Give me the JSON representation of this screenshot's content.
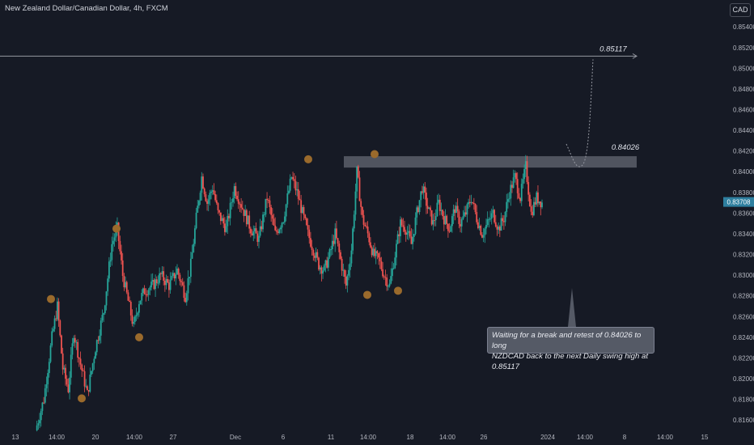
{
  "header": {
    "title": "New Zealand Dollar/Canadian Dollar, 4h, FXCM",
    "currency": "CAD"
  },
  "colors": {
    "background": "#161a25",
    "up": "#26a69a",
    "down": "#ef5350",
    "text": "#b2b5be",
    "swing": "#9a6a2c",
    "zone": "#5a5f6a",
    "price_tag": "#2e7f9f"
  },
  "chart_data": {
    "type": "candlestick",
    "title": "New Zealand Dollar/Canadian Dollar, 4h, FXCM",
    "ylim": [
      0.815,
      0.8555
    ],
    "y_ticks": [
      "0.85400",
      "0.85200",
      "0.85000",
      "0.84800",
      "0.84600",
      "0.84400",
      "0.84200",
      "0.84000",
      "0.83800",
      "0.83600",
      "0.83400",
      "0.83200",
      "0.83000",
      "0.82800",
      "0.82600",
      "0.82400",
      "0.82200",
      "0.82000",
      "0.81800",
      "0.81600"
    ],
    "x_ticks": [
      "13",
      "14:00",
      "20",
      "14:00",
      "27",
      "Dec",
      "6",
      "11",
      "14:00",
      "18",
      "14:00",
      "26",
      "2024",
      "14:00",
      "8",
      "14:00",
      "15"
    ],
    "current_price": "0.83708",
    "candles_close_path": [
      [
        0,
        0.815
      ],
      [
        6,
        0.818
      ],
      [
        12,
        0.824
      ],
      [
        16,
        0.827
      ],
      [
        20,
        0.821
      ],
      [
        24,
        0.819
      ],
      [
        28,
        0.8245
      ],
      [
        32,
        0.822
      ],
      [
        38,
        0.8185
      ],
      [
        44,
        0.823
      ],
      [
        50,
        0.8265
      ],
      [
        56,
        0.833
      ],
      [
        60,
        0.8345
      ],
      [
        64,
        0.83
      ],
      [
        68,
        0.8275
      ],
      [
        72,
        0.825
      ],
      [
        76,
        0.8275
      ],
      [
        80,
        0.8285
      ],
      [
        86,
        0.829
      ],
      [
        92,
        0.83
      ],
      [
        98,
        0.829
      ],
      [
        104,
        0.8305
      ],
      [
        110,
        0.828
      ],
      [
        114,
        0.831
      ],
      [
        118,
        0.8355
      ],
      [
        122,
        0.8395
      ],
      [
        126,
        0.837
      ],
      [
        130,
        0.8385
      ],
      [
        134,
        0.836
      ],
      [
        140,
        0.8345
      ],
      [
        146,
        0.8385
      ],
      [
        152,
        0.8365
      ],
      [
        158,
        0.8345
      ],
      [
        164,
        0.8335
      ],
      [
        170,
        0.8375
      ],
      [
        176,
        0.834
      ],
      [
        182,
        0.8355
      ],
      [
        188,
        0.8395
      ],
      [
        192,
        0.838
      ],
      [
        196,
        0.836
      ],
      [
        200,
        0.834
      ],
      [
        204,
        0.8325
      ],
      [
        208,
        0.831
      ],
      [
        212,
        0.8305
      ],
      [
        216,
        0.832
      ],
      [
        220,
        0.834
      ],
      [
        224,
        0.8315
      ],
      [
        228,
        0.829
      ],
      [
        232,
        0.8325
      ],
      [
        236,
        0.84
      ],
      [
        240,
        0.8355
      ],
      [
        244,
        0.834
      ],
      [
        248,
        0.832
      ],
      [
        252,
        0.8315
      ],
      [
        256,
        0.83
      ],
      [
        260,
        0.829
      ],
      [
        264,
        0.832
      ],
      [
        268,
        0.835
      ],
      [
        272,
        0.8345
      ],
      [
        276,
        0.833
      ],
      [
        280,
        0.836
      ],
      [
        284,
        0.8385
      ],
      [
        288,
        0.8365
      ],
      [
        292,
        0.835
      ],
      [
        296,
        0.837
      ],
      [
        300,
        0.8355
      ],
      [
        304,
        0.8345
      ],
      [
        308,
        0.8365
      ],
      [
        312,
        0.835
      ],
      [
        316,
        0.836
      ],
      [
        320,
        0.8375
      ],
      [
        324,
        0.8355
      ],
      [
        328,
        0.834
      ],
      [
        332,
        0.835
      ],
      [
        336,
        0.836
      ],
      [
        340,
        0.8345
      ],
      [
        344,
        0.8355
      ],
      [
        348,
        0.838
      ],
      [
        352,
        0.8395
      ],
      [
        356,
        0.8375
      ],
      [
        360,
        0.8405
      ],
      [
        364,
        0.836
      ],
      [
        368,
        0.8375
      ],
      [
        372,
        0.837
      ]
    ],
    "swing_points": [
      [
        1,
        0.8277
      ],
      [
        5,
        0.8181
      ],
      [
        12,
        0.8345
      ],
      [
        16,
        0.824
      ],
      [
        45,
        0.8412
      ],
      [
        61,
        0.8417
      ],
      [
        62,
        0.8281
      ],
      [
        71,
        0.8285
      ]
    ],
    "resistance_zone": [
      0.8404,
      0.8415
    ],
    "annotations": {
      "resistance_label": "0.84026",
      "target_label": "0.85117",
      "target": 0.85117
    }
  },
  "note": {
    "line1": "Waiting for a break and retest of 0.84026 to long",
    "line2": "NZDCAD back to the next Daily swing high at 0.85117"
  }
}
